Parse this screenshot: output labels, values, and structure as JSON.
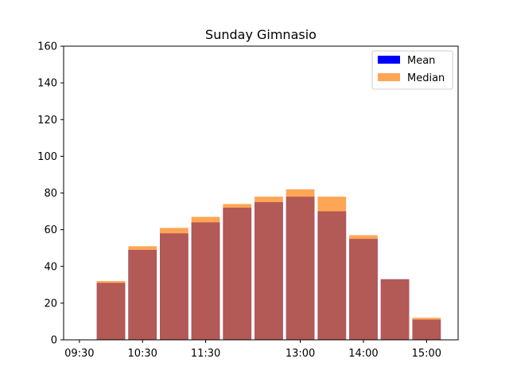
{
  "chart_data": {
    "type": "bar",
    "title": "Sunday Gimnasio",
    "xlabel": "",
    "ylabel": "",
    "ylim": [
      0,
      160
    ],
    "yticks": [
      0,
      20,
      40,
      60,
      80,
      100,
      120,
      140,
      160
    ],
    "xlim": [
      "09:15",
      "15:30"
    ],
    "xtick_labels": [
      "09:30",
      "10:30",
      "11:30",
      "13:00",
      "14:00",
      "15:00"
    ],
    "x": [
      "09:30",
      "10:00",
      "10:30",
      "11:00",
      "11:30",
      "12:00",
      "12:30",
      "13:00",
      "13:30",
      "14:00",
      "14:30",
      "15:00"
    ],
    "legend_position": "upper right",
    "grid": false,
    "series": [
      {
        "name": "Mean",
        "color": "#0000ff",
        "values": [
          0,
          31,
          49,
          58,
          64,
          72,
          75,
          78,
          70,
          55,
          33,
          11
        ]
      },
      {
        "name": "Median",
        "color": "#ff7f0e",
        "alpha": 0.7,
        "values": [
          0,
          32,
          51,
          61,
          67,
          74,
          78,
          82,
          78,
          57,
          33,
          12
        ]
      }
    ]
  }
}
